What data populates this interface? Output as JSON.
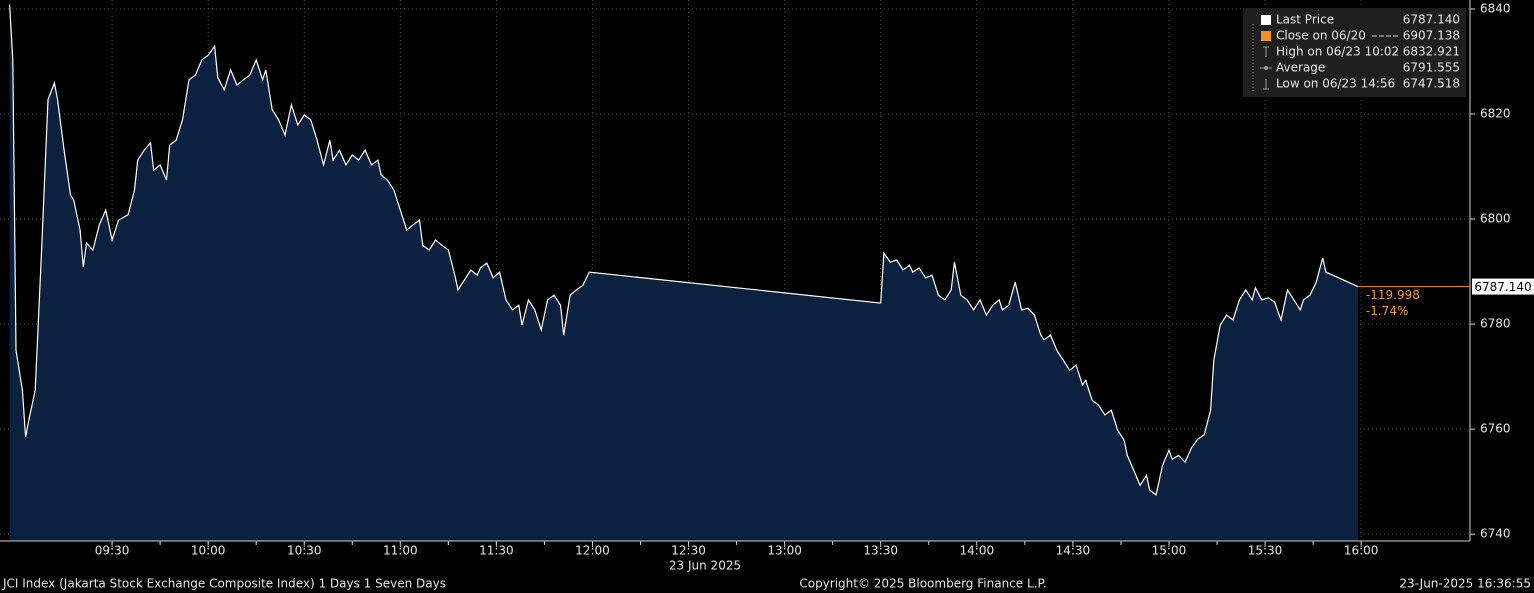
{
  "chart_data": {
    "type": "area",
    "title": "JCI Index (Jakarta Stock Exchange Composite Index) 1 Days 1 Seven Days",
    "copyright": "Copyright© 2025 Bloomberg Finance L.P.",
    "timestamp": "23-Jun-2025 16:36:55",
    "x_axis_date": "23 Jun 2025",
    "color": "#ffffff",
    "fill_color": "#0c2140",
    "x": [
      "08:58",
      "08:59",
      "09:00",
      "09:02",
      "09:03",
      "09:04",
      "09:06",
      "09:08",
      "09:10",
      "09:12",
      "09:13",
      "09:15",
      "09:17",
      "09:18",
      "09:20",
      "09:21",
      "09:22",
      "09:24",
      "09:26",
      "09:28",
      "09:29",
      "09:30",
      "09:32",
      "09:35",
      "09:37",
      "09:38",
      "09:40",
      "09:42",
      "09:43",
      "09:45",
      "09:47",
      "09:48",
      "09:50",
      "09:52",
      "09:54",
      "09:56",
      "09:58",
      "10:00",
      "10:02",
      "10:03",
      "10:05",
      "10:07",
      "10:09",
      "10:11",
      "10:13",
      "10:15",
      "10:17",
      "10:18",
      "10:20",
      "10:22",
      "10:24",
      "10:26",
      "10:28",
      "10:30",
      "10:32",
      "10:34",
      "10:36",
      "10:38",
      "10:39",
      "10:41",
      "10:43",
      "10:45",
      "10:47",
      "10:49",
      "10:51",
      "10:53",
      "10:54",
      "10:56",
      "10:58",
      "11:00",
      "11:02",
      "11:04",
      "11:06",
      "11:07",
      "11:09",
      "11:11",
      "11:13",
      "11:15",
      "11:17",
      "11:18",
      "11:20",
      "11:22",
      "11:24",
      "11:25",
      "11:27",
      "11:29",
      "11:31",
      "11:33",
      "11:35",
      "11:37",
      "11:38",
      "11:40",
      "11:42",
      "11:44",
      "11:46",
      "11:48",
      "11:50",
      "11:51",
      "11:53",
      "11:55",
      "11:57",
      "11:59",
      "13:30",
      "13:31",
      "13:33",
      "13:35",
      "13:37",
      "13:39",
      "13:40",
      "13:42",
      "13:44",
      "13:46",
      "13:48",
      "13:50",
      "13:52",
      "13:53",
      "13:55",
      "13:57",
      "13:59",
      "14:01",
      "14:03",
      "14:05",
      "14:07",
      "14:08",
      "14:10",
      "14:12",
      "14:14",
      "14:16",
      "14:18",
      "14:20",
      "14:21",
      "14:23",
      "14:25",
      "14:27",
      "14:29",
      "14:31",
      "14:33",
      "14:34",
      "14:36",
      "14:38",
      "14:40",
      "14:42",
      "14:44",
      "14:46",
      "14:47",
      "14:49",
      "14:51",
      "14:53",
      "14:54",
      "14:56",
      "14:58",
      "15:00",
      "15:01",
      "15:03",
      "15:05",
      "15:07",
      "15:09",
      "15:11",
      "15:13",
      "15:14",
      "15:16",
      "15:18",
      "15:20",
      "15:22",
      "15:24",
      "15:26",
      "15:27",
      "15:29",
      "15:31",
      "15:33",
      "15:35",
      "15:37",
      "15:39",
      "15:41",
      "15:42",
      "15:44",
      "15:46",
      "15:48",
      "15:49",
      "15:59"
    ],
    "values": [
      6840.8,
      6830.3,
      6775.0,
      6767.4,
      6758.5,
      6761.7,
      6767.4,
      6794.1,
      6822.7,
      6825.9,
      6822.7,
      6813.1,
      6804.6,
      6803.6,
      6797.9,
      6790.9,
      6795.4,
      6794.1,
      6798.9,
      6801.7,
      6798.9,
      6796.0,
      6799.8,
      6800.8,
      6805.5,
      6811.2,
      6813.1,
      6814.5,
      6809.3,
      6810.3,
      6807.4,
      6814.1,
      6815.0,
      6818.9,
      6826.5,
      6827.4,
      6830.3,
      6831.2,
      6832.9,
      6826.9,
      6824.6,
      6828.4,
      6825.5,
      6826.5,
      6827.4,
      6830.3,
      6826.5,
      6828.4,
      6820.8,
      6818.9,
      6816.0,
      6821.7,
      6817.9,
      6819.8,
      6818.9,
      6815.0,
      6810.3,
      6815.0,
      6811.2,
      6813.1,
      6810.3,
      6812.2,
      6811.2,
      6813.1,
      6810.3,
      6811.2,
      6808.4,
      6807.4,
      6805.5,
      6801.7,
      6797.9,
      6798.9,
      6799.8,
      6795.0,
      6794.1,
      6796.0,
      6795.0,
      6794.1,
      6789.3,
      6786.5,
      6788.4,
      6790.3,
      6789.3,
      6790.7,
      6791.6,
      6788.8,
      6789.9,
      6784.6,
      6782.7,
      6783.6,
      6779.8,
      6784.6,
      6782.7,
      6778.9,
      6784.6,
      6785.5,
      6783.6,
      6777.9,
      6785.5,
      6786.5,
      6787.4,
      6789.9,
      6784.0,
      6793.5,
      6791.8,
      6792.2,
      6790.3,
      6791.2,
      6789.9,
      6790.7,
      6788.8,
      6789.3,
      6785.5,
      6784.6,
      6786.5,
      6791.8,
      6785.5,
      6784.6,
      6782.7,
      6784.6,
      6781.7,
      6783.6,
      6784.6,
      6782.7,
      6783.6,
      6788.0,
      6782.7,
      6783.0,
      6781.7,
      6777.9,
      6777.0,
      6777.9,
      6775.0,
      6773.1,
      6771.2,
      6772.2,
      6768.4,
      6769.3,
      6765.5,
      6764.6,
      6762.7,
      6763.6,
      6759.8,
      6757.9,
      6755.0,
      6752.2,
      6749.3,
      6751.2,
      6748.4,
      6747.5,
      6753.1,
      6756.0,
      6754.3,
      6755.0,
      6753.7,
      6756.4,
      6758.1,
      6758.9,
      6763.6,
      6773.1,
      6779.8,
      6781.7,
      6780.8,
      6784.6,
      6786.5,
      6784.6,
      6786.9,
      6784.6,
      6785.0,
      6784.2,
      6780.8,
      6786.5,
      6784.6,
      6782.7,
      6784.6,
      6785.5,
      6788.0,
      6792.6,
      6789.9,
      6787.14
    ],
    "xlim": [
      "08:55",
      "16:34"
    ],
    "xticks": [
      "09:30",
      "10:00",
      "10:30",
      "11:00",
      "11:30",
      "12:00",
      "12:30",
      "13:00",
      "13:30",
      "14:00",
      "14:30",
      "15:00",
      "15:30",
      "16:00"
    ],
    "ylim": [
      6738.7,
      6841.7
    ],
    "yticks": [
      6740,
      6760,
      6780,
      6800,
      6820,
      6840
    ],
    "grid": true,
    "legend_position": "upper right",
    "legend": [
      {
        "name": "Last Price",
        "value": {
          "value": 6787.14,
          "label": "6787.140"
        },
        "color": "#ffffff"
      },
      {
        "name": "Close on 06/20",
        "value": {
          "value": 6907.138,
          "label": "6907.138"
        },
        "color": "#f7941d"
      },
      {
        "name": "High on 06/23 10:02",
        "value": 6832.921,
        "color": "#9a9a9a"
      },
      {
        "name": "Average",
        "value": 6791.555,
        "color": "#9a9a9a"
      },
      {
        "name": "Low on 06/23 14:56",
        "value": 6747.518,
        "color": "#9a9a9a"
      }
    ],
    "last_price_line_color": "#f7941d",
    "change": -119.998,
    "change_pct": {
      "value": -1.74,
      "label": "-1.74%"
    }
  }
}
